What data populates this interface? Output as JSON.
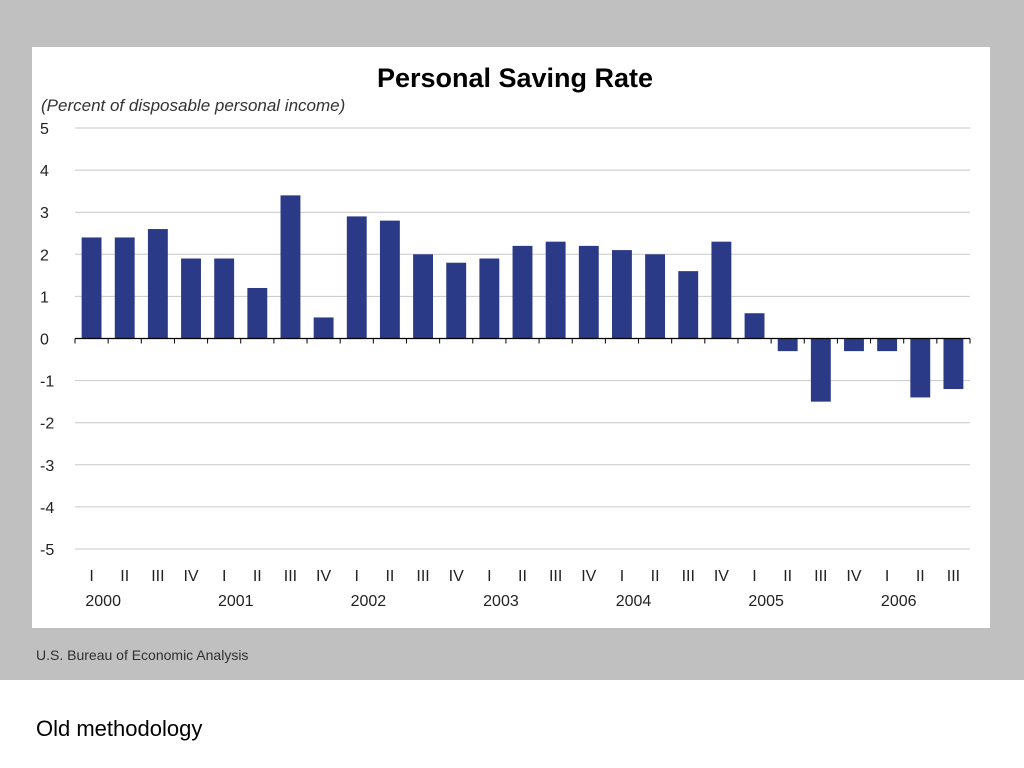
{
  "chart_data": {
    "type": "bar",
    "title": "Personal Saving Rate",
    "subtitle": "(Percent of disposable personal income)",
    "ylim": [
      -5,
      5
    ],
    "yticks": [
      5,
      4,
      3,
      2,
      1,
      0,
      -1,
      -2,
      -3,
      -4,
      -5
    ],
    "grid": true,
    "bar_color": "#2b3a87",
    "categories": [
      "I",
      "II",
      "III",
      "IV",
      "I",
      "II",
      "III",
      "IV",
      "I",
      "II",
      "III",
      "IV",
      "I",
      "II",
      "III",
      "IV",
      "I",
      "II",
      "III",
      "IV",
      "I",
      "II",
      "III",
      "IV",
      "I",
      "II",
      "III"
    ],
    "years": [
      "2000",
      "2001",
      "2002",
      "2003",
      "2004",
      "2005",
      "2006"
    ],
    "values": [
      2.4,
      2.4,
      2.6,
      1.9,
      1.9,
      1.2,
      3.4,
      0.5,
      2.9,
      2.8,
      2.0,
      1.8,
      1.9,
      2.2,
      2.3,
      2.2,
      2.1,
      2.0,
      1.6,
      2.3,
      0.6,
      -0.3,
      -1.5,
      -0.3,
      -0.3,
      -1.4,
      -1.2
    ]
  },
  "source": "U.S. Bureau of Economic Analysis",
  "caption": "Old methodology"
}
